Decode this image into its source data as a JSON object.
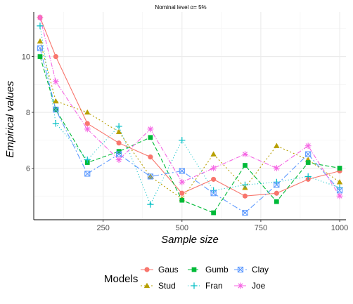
{
  "chart_data": {
    "type": "line",
    "title": "Nominal level α= 5%",
    "xlabel": "Sample size",
    "ylabel": "Empirical values",
    "xlim": [
      30,
      1020
    ],
    "ylim": [
      4.15,
      11.6
    ],
    "xticks": [
      250,
      500,
      750,
      1000
    ],
    "yticks": [
      6,
      8,
      10
    ],
    "grid": true,
    "legend": {
      "title": "Models",
      "position": "bottom"
    },
    "x": [
      50,
      100,
      200,
      300,
      400,
      500,
      600,
      700,
      800,
      900,
      1000
    ],
    "series": [
      {
        "name": "Gaus",
        "color": "#F8766D",
        "marker": "circle",
        "dash": "",
        "values": [
          11.4,
          10.0,
          7.6,
          6.9,
          6.4,
          5.1,
          5.6,
          5.0,
          5.1,
          5.6,
          5.9
        ]
      },
      {
        "name": "Stud",
        "color": "#B79F00",
        "marker": "triangle",
        "dash": "2 3",
        "values": [
          10.55,
          8.4,
          8.0,
          7.3,
          5.7,
          4.9,
          6.5,
          5.3,
          6.8,
          6.3,
          5.5
        ]
      },
      {
        "name": "Gumb",
        "color": "#00BA38",
        "marker": "square",
        "dash": "6 3",
        "values": [
          10.0,
          8.1,
          6.2,
          6.6,
          7.1,
          4.85,
          4.4,
          6.1,
          4.8,
          6.2,
          6.0
        ]
      },
      {
        "name": "Fran",
        "color": "#00BFC4",
        "marker": "plus",
        "dash": "1 3",
        "values": [
          11.1,
          7.6,
          6.3,
          7.5,
          4.7,
          7.0,
          5.2,
          5.4,
          5.5,
          5.7,
          5.3
        ]
      },
      {
        "name": "Clay",
        "color": "#619CFF",
        "marker": "boxx",
        "dash": "8 3 2 3",
        "values": [
          10.3,
          8.1,
          5.8,
          6.5,
          5.7,
          5.9,
          5.1,
          4.4,
          5.4,
          6.5,
          5.2
        ]
      },
      {
        "name": "Joe",
        "color": "#F564E3",
        "marker": "star",
        "dash": "6 2 1 2",
        "values": [
          11.4,
          9.1,
          7.4,
          6.3,
          7.4,
          5.5,
          6.0,
          6.5,
          6.0,
          6.8,
          5.0
        ]
      }
    ]
  }
}
